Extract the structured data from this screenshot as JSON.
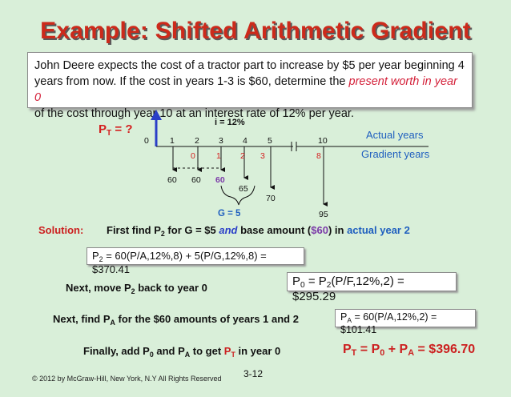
{
  "title": "Example: Shifted Arithmetic Gradient",
  "problem": {
    "line1": "John Deere expects the cost of a tractor part to increase by $5 per year beginning 4",
    "line2a": "years from now. If the cost in years 1-3 is $60, determine the ",
    "line2b": "present worth in year 0",
    "line3": "of the cost through year 10 at an interest rate of 12% per year."
  },
  "diagram": {
    "pt": "P",
    "pt_sub": "T",
    "pt_suffix": " = ?",
    "interest": "i = 12%",
    "actual_years_label": "Actual years",
    "gradient_years_label": "Gradient years",
    "actual_years": [
      "0",
      "1",
      "2",
      "3",
      "4",
      "5",
      "10"
    ],
    "gradient_years": [
      "0",
      "1",
      "2",
      "3",
      "8"
    ],
    "cash_flows": [
      "60",
      "60",
      "60",
      "65",
      "70",
      "95"
    ],
    "gradient": "G = 5"
  },
  "solution": {
    "label": "Solution:",
    "first_a": "First find P",
    "first_sub": "2",
    "first_b": " for G = $5 ",
    "first_and": "and",
    "first_c": " base amount (",
    "first_base": "$60",
    "first_d": ") in ",
    "first_year": "actual year 2",
    "box1_a": "P",
    "box1_sub": "2",
    "box1_b": " = 60(P/A,12%,8) + 5(P/G,12%,8) = $370.41",
    "next_a": "Next, move P",
    "next_sub": "2",
    "next_b": " back to year 0",
    "box2_a": "P",
    "box2_sub1": "0",
    "box2_b": " = P",
    "box2_sub2": "2",
    "box2_c": "(P/F,12%,2) = $295.29",
    "find_a": "Next, find P",
    "find_sub": "A",
    "find_b": " for the $60 amounts of years 1 and  2",
    "box3_a": "P",
    "box3_sub": "A",
    "box3_b": " = 60(P/A,12%,2) = $101.41",
    "final_a": "Finally, add P",
    "final_sub1": "0",
    "final_b": " and  P",
    "final_sub2": "A",
    "final_c": " to get ",
    "final_pt": "P",
    "final_pt_sub": "T",
    "final_d": " in year 0",
    "result_a": "P",
    "result_sub1": "T",
    "result_b": " = P",
    "result_sub2": "0",
    "result_c": " + P",
    "result_sub3": "A",
    "result_d": " =  $396.70"
  },
  "footer": "© 2012 by McGraw-Hill, New York, N.Y All Rights Reserved",
  "page_number": "3-12"
}
